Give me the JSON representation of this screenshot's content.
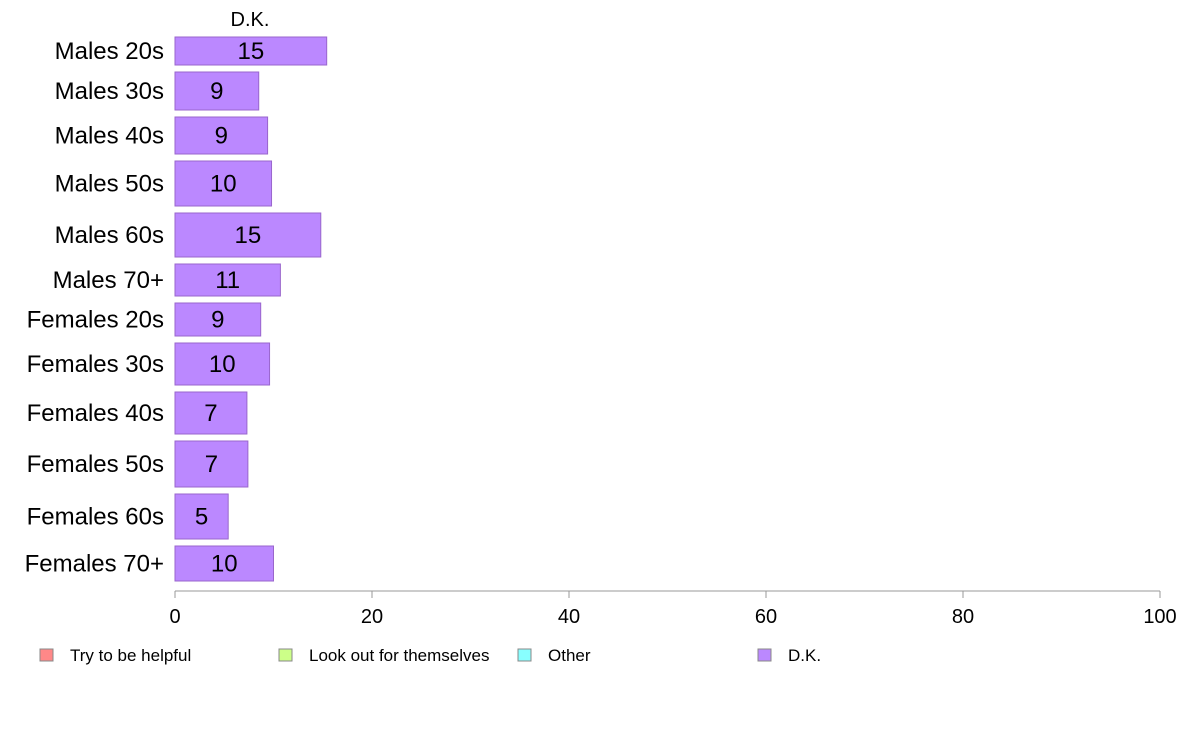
{
  "chart_data": {
    "type": "bar",
    "orientation": "horizontal",
    "title": "",
    "xlabel": "",
    "ylabel": "",
    "xlim": [
      0,
      100
    ],
    "x_ticks": [
      0,
      20,
      40,
      60,
      80,
      100
    ],
    "series_header": "D.K.",
    "categories": [
      "Males 20s",
      "Males 30s",
      "Males 40s",
      "Males 50s",
      "Males 60s",
      "Males 70+",
      "Females 20s",
      "Females 30s",
      "Females 40s",
      "Females 50s",
      "Females 60s",
      "Females 70+"
    ],
    "series": [
      {
        "name": "D.K.",
        "color": "#bb88ff",
        "values": [
          15.4,
          8.5,
          9.4,
          9.8,
          14.8,
          10.7,
          8.7,
          9.6,
          7.3,
          7.4,
          5.4,
          10.0
        ],
        "labels": [
          "15",
          "9",
          "9",
          "10",
          "15",
          "11",
          "9",
          "10",
          "7",
          "7",
          "5",
          "10"
        ]
      }
    ],
    "legend": {
      "position": "bottom",
      "items": [
        {
          "label": "Try to be helpful",
          "color": "#ff8888"
        },
        {
          "label": "Look out for themselves",
          "color": "#ccff88"
        },
        {
          "label": "Other",
          "color": "#88ffff"
        },
        {
          "label": "D.K.",
          "color": "#bb88ff"
        }
      ]
    },
    "bar_stroke_color": "#9966cc",
    "axis_color": "#999999",
    "grid": false
  }
}
